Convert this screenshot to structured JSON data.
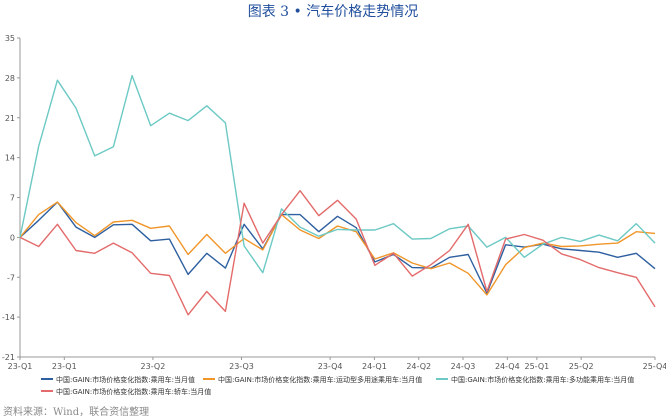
{
  "title": "图表 3 • 汽车价格走势情况",
  "source": "资料来源：Wind，联合资信整理",
  "chart_data": {
    "type": "line",
    "title": "图表 3 • 汽车价格走势情况",
    "xlabel": "",
    "ylabel": "",
    "ylim": [
      -21,
      35
    ],
    "yticks": [
      -21,
      -14,
      -7,
      0,
      7,
      14,
      21,
      28,
      35
    ],
    "xticks": [
      "23-Q1",
      "23-Q1",
      "23-Q2",
      "23-Q3",
      "23-Q4",
      "24-Q1",
      "24-Q2",
      "24-Q3",
      "24-Q4",
      "25-Q1",
      "25-Q2",
      "25-Q4"
    ],
    "grid": false,
    "legend": "bottom",
    "series": [
      {
        "name": "中国:GAIN:市场价格变化指数:乘用车:当月值",
        "color": "#2e5fa0",
        "values": [
          0,
          3,
          6.2,
          1.8,
          0,
          2.2,
          2.3,
          -0.6,
          -0.3,
          -6.5,
          -2.8,
          -5.4,
          2.3,
          -2,
          4,
          4,
          1,
          3.7,
          1.7,
          -4.3,
          -3,
          -5.3,
          -5.4,
          -3.5,
          -3,
          -9.8,
          -1.3,
          -1.7,
          -1.2,
          -2,
          -2.3,
          -2.6,
          -3.5,
          -2.8,
          -5.5
        ]
      },
      {
        "name": "中国:GAIN:市场价格变化指数:乘用车:运动型多用途乘用车:当月值",
        "color": "#f0962a",
        "values": [
          0,
          4,
          6.2,
          2.6,
          0.3,
          2.7,
          3,
          1.6,
          2,
          -3,
          0.5,
          -2.8,
          -0.2,
          -2.2,
          4,
          1.3,
          -0.2,
          2,
          1,
          -3.8,
          -2.7,
          -4.5,
          -5.5,
          -4.5,
          -6.3,
          -10.1,
          -4.8,
          -1.8,
          -1,
          -1.6,
          -1.5,
          -1.2,
          -1,
          1,
          0.7
        ]
      },
      {
        "name": "中国:GAIN:市场价格变化指数:乘用车:多功能乘用车:当月值",
        "color": "#6cc9c4",
        "values": [
          0,
          16,
          27.6,
          22.7,
          14.3,
          15.9,
          28.4,
          19.6,
          21.8,
          20.5,
          23.1,
          20.1,
          -1.5,
          -6.2,
          5,
          1.8,
          0.2,
          1.4,
          1.3,
          1.3,
          2.4,
          -0.3,
          -0.2,
          1.5,
          2,
          -1.7,
          0,
          -3.5,
          -1.2,
          0,
          -0.7,
          0.4,
          -0.6,
          2.4,
          -1
        ]
      },
      {
        "name": "中国:GAIN:市场价格变化指数:乘用车:轿车:当月值",
        "color": "#e36b6b",
        "values": [
          0,
          -1.6,
          2.3,
          -2.3,
          -2.8,
          -1,
          -2.7,
          -6.3,
          -6.7,
          -13.6,
          -9.5,
          -13,
          6,
          -1,
          4,
          8.2,
          3.8,
          6.5,
          3.2,
          -4.9,
          -2.8,
          -6.8,
          -4.8,
          -2.3,
          2.3,
          -9.5,
          -0.3,
          0.5,
          -0.5,
          -2.9,
          -3.9,
          -5.3,
          -6.2,
          -7,
          -12.2
        ]
      }
    ]
  }
}
